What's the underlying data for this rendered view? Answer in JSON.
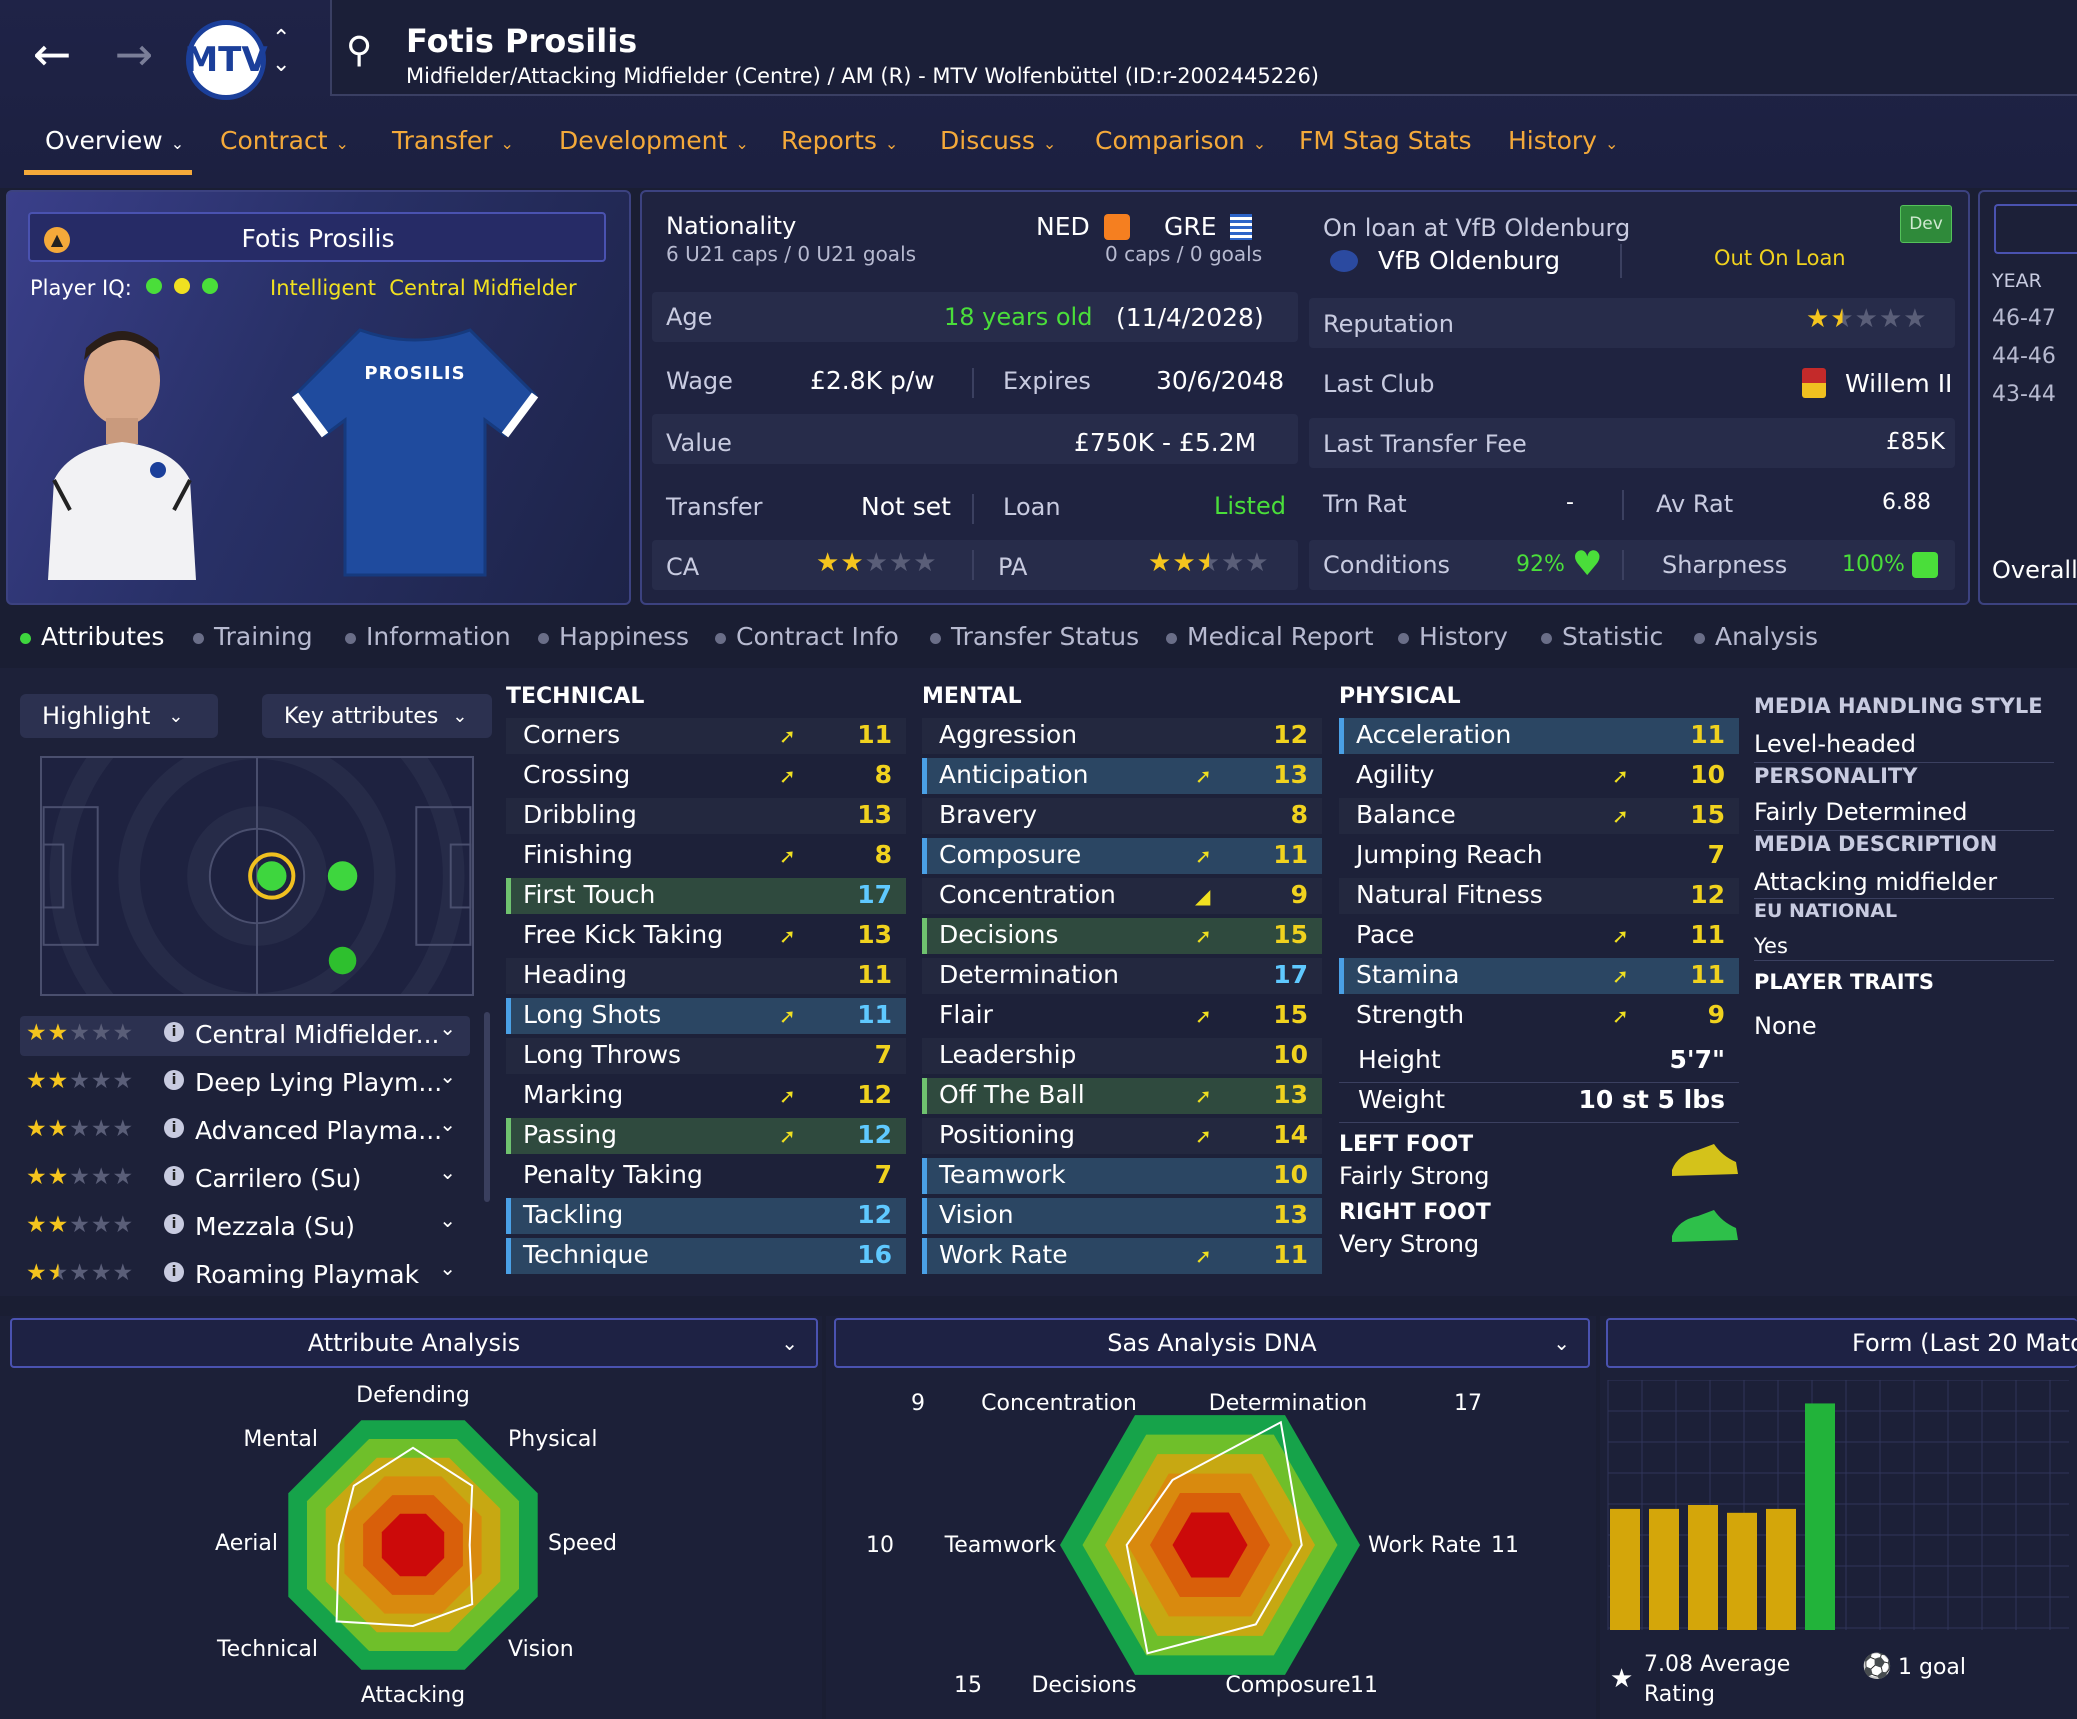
{
  "header": {
    "player_name": "Fotis Prosilis",
    "subtitle": "Midfielder/Attacking Midfielder (Centre) / AM (R) - MTV Wolfenbüttel (ID:r-2002445226)",
    "crest_text": "MTV"
  },
  "tabs": [
    {
      "label": "Overview"
    },
    {
      "label": "Contract"
    },
    {
      "label": "Transfer"
    },
    {
      "label": "Development"
    },
    {
      "label": "Reports"
    },
    {
      "label": "Discuss"
    },
    {
      "label": "Comparison"
    },
    {
      "label": "FM Stag Stats"
    },
    {
      "label": "History"
    }
  ],
  "card": {
    "name": "Fotis Prosilis",
    "iq_label": "Player IQ:",
    "iq_desc": "Intelligent  Central Midfielder",
    "shirt_name": "PROSILIS"
  },
  "info": {
    "nationality_label": "Nationality",
    "nat1": "NED",
    "nat1_caps": "6 U21 caps / 0 U21 goals",
    "nat2": "GRE",
    "nat2_caps": "0 caps / 0 goals",
    "loan_at": "On loan at VfB Oldenburg",
    "loan_club": "VfB Oldenburg",
    "loan_status": "Out On Loan",
    "dev_badge": "Dev",
    "age_label": "Age",
    "age": "18 years old",
    "dob": "(11/4/2028)",
    "wage_label": "Wage",
    "wage": "£2.8K p/w",
    "expires_label": "Expires",
    "expires": "30/6/2048",
    "value_label": "Value",
    "value": "£750K - £5.2M",
    "transfer_label": "Transfer",
    "transfer": "Not set",
    "loan_label": "Loan",
    "loan": "Listed",
    "ca_label": "CA",
    "ca_stars": 2,
    "pa_label": "PA",
    "pa_stars": 2.5,
    "reputation_label": "Reputation",
    "reputation_stars": 1.5,
    "last_club_label": "Last Club",
    "last_club": "Willem II",
    "fee_label": "Last Transfer Fee",
    "fee": "£85K",
    "trn_label": "Trn Rat",
    "trn": "-",
    "av_label": "Av Rat",
    "av": "6.88",
    "cond_label": "Conditions",
    "cond": "92%",
    "sharp_label": "Sharpness",
    "sharp": "100%"
  },
  "history_side": {
    "header": "YEAR",
    "years": [
      "46-47",
      "44-46",
      "43-44"
    ],
    "overall": "Overall"
  },
  "subtabs": [
    {
      "label": "Attributes"
    },
    {
      "label": "Training"
    },
    {
      "label": "Information"
    },
    {
      "label": "Happiness"
    },
    {
      "label": "Contract Info"
    },
    {
      "label": "Transfer Status"
    },
    {
      "label": "Medical Report"
    },
    {
      "label": "History"
    },
    {
      "label": "Statistic"
    },
    {
      "label": "Analysis"
    }
  ],
  "controls": {
    "highlight": "Highlight",
    "key_attrs": "Key attributes"
  },
  "roles": [
    {
      "name": "Central Midfielder...",
      "stars": 2
    },
    {
      "name": "Deep Lying Playm...",
      "stars": 2
    },
    {
      "name": "Advanced Playma...",
      "stars": 2
    },
    {
      "name": "Carrilero (Su)",
      "stars": 2
    },
    {
      "name": "Mezzala (Su)",
      "stars": 2
    },
    {
      "name": "Roaming Playmak",
      "stars": 1.5
    }
  ],
  "technical": {
    "title": "TECHNICAL",
    "rows": [
      {
        "name": "Corners",
        "value": "11",
        "hl": "",
        "arrow": "up"
      },
      {
        "name": "Crossing",
        "value": "8",
        "hl": "",
        "arrow": "up"
      },
      {
        "name": "Dribbling",
        "value": "13",
        "hl": "",
        "arrow": ""
      },
      {
        "name": "Finishing",
        "value": "8",
        "hl": "",
        "arrow": "up"
      },
      {
        "name": "First Touch",
        "value": "17",
        "hl": "g",
        "arrow": ""
      },
      {
        "name": "Free Kick Taking",
        "value": "13",
        "hl": "",
        "arrow": "up"
      },
      {
        "name": "Heading",
        "value": "11",
        "hl": "",
        "arrow": ""
      },
      {
        "name": "Long Shots",
        "value": "11",
        "hl": "b",
        "arrow": "up"
      },
      {
        "name": "Long Throws",
        "value": "7",
        "hl": "",
        "arrow": ""
      },
      {
        "name": "Marking",
        "value": "12",
        "hl": "",
        "arrow": "up"
      },
      {
        "name": "Passing",
        "value": "12",
        "hl": "g",
        "arrow": "up"
      },
      {
        "name": "Penalty Taking",
        "value": "7",
        "hl": "",
        "arrow": ""
      },
      {
        "name": "Tackling",
        "value": "12",
        "hl": "b",
        "arrow": ""
      },
      {
        "name": "Technique",
        "value": "16",
        "hl": "b",
        "arrow": ""
      }
    ]
  },
  "mental": {
    "title": "MENTAL",
    "rows": [
      {
        "name": "Aggression",
        "value": "12",
        "hl": "",
        "arrow": ""
      },
      {
        "name": "Anticipation",
        "value": "13",
        "hl": "b",
        "arrow": "up"
      },
      {
        "name": "Bravery",
        "value": "8",
        "hl": "",
        "arrow": ""
      },
      {
        "name": "Composure",
        "value": "11",
        "hl": "b",
        "arrow": "up"
      },
      {
        "name": "Concentration",
        "value": "9",
        "hl": "",
        "arrow": "up2"
      },
      {
        "name": "Decisions",
        "value": "15",
        "hl": "g",
        "arrow": "up"
      },
      {
        "name": "Determination",
        "value": "17",
        "hl": "",
        "arrow": ""
      },
      {
        "name": "Flair",
        "value": "15",
        "hl": "",
        "arrow": "up"
      },
      {
        "name": "Leadership",
        "value": "10",
        "hl": "",
        "arrow": ""
      },
      {
        "name": "Off The Ball",
        "value": "13",
        "hl": "g",
        "arrow": "up"
      },
      {
        "name": "Positioning",
        "value": "14",
        "hl": "",
        "arrow": "up"
      },
      {
        "name": "Teamwork",
        "value": "10",
        "hl": "b",
        "arrow": ""
      },
      {
        "name": "Vision",
        "value": "13",
        "hl": "b",
        "arrow": ""
      },
      {
        "name": "Work Rate",
        "value": "11",
        "hl": "b",
        "arrow": "up"
      }
    ]
  },
  "physical": {
    "title": "PHYSICAL",
    "rows": [
      {
        "name": "Acceleration",
        "value": "11",
        "hl": "b",
        "arrow": ""
      },
      {
        "name": "Agility",
        "value": "10",
        "hl": "",
        "arrow": "up"
      },
      {
        "name": "Balance",
        "value": "15",
        "hl": "",
        "arrow": "up"
      },
      {
        "name": "Jumping Reach",
        "value": "7",
        "hl": "",
        "arrow": ""
      },
      {
        "name": "Natural Fitness",
        "value": "12",
        "hl": "",
        "arrow": ""
      },
      {
        "name": "Pace",
        "value": "11",
        "hl": "",
        "arrow": "up"
      },
      {
        "name": "Stamina",
        "value": "11",
        "hl": "b",
        "arrow": "up"
      },
      {
        "name": "Strength",
        "value": "9",
        "hl": "",
        "arrow": "up"
      }
    ],
    "height_label": "Height",
    "height": "5'7\"",
    "weight_label": "Weight",
    "weight": "10 st 5 lbs",
    "left_foot_label": "LEFT FOOT",
    "left_foot": "Fairly Strong",
    "right_foot_label": "RIGHT FOOT",
    "right_foot": "Very Strong"
  },
  "media": {
    "style_label": "MEDIA HANDLING STYLE",
    "style": "Level-headed",
    "personality_label": "PERSONALITY",
    "personality": "Fairly Determined",
    "desc_label": "MEDIA DESCRIPTION",
    "desc": "Attacking midfielder",
    "eu_label": "EU NATIONAL",
    "eu": "Yes",
    "traits_label": "PLAYER TRAITS",
    "traits": "None"
  },
  "attr_analysis": {
    "title": "Attribute Analysis",
    "labels": [
      "Defending",
      "Physical",
      "Speed",
      "Vision",
      "Attacking",
      "Technical",
      "Aerial",
      "Mental"
    ],
    "values": [
      0.72,
      0.62,
      0.42,
      0.62,
      0.6,
      0.8,
      0.55,
      0.62
    ]
  },
  "sas_dna": {
    "title": "Sas Analysis DNA",
    "labels": [
      "Concentration",
      "Determination",
      "Work Rate",
      "Composure",
      "Decisions",
      "Teamwork"
    ],
    "values": [
      "9",
      "17",
      "11",
      "11",
      "15",
      "10"
    ]
  },
  "form": {
    "title": "Form (Last 20 Matc",
    "values": [
      7.05,
      7.05,
      7.1,
      7.0,
      7.05,
      8.4
    ],
    "avg": "7.08 Average",
    "avg2": "Rating",
    "goals": "1 goal"
  },
  "colors": {
    "accent": "#f4a93a",
    "good": "#4ade3a",
    "value_blue": "#5fc9ff",
    "value_yellow": "#f0d21e"
  }
}
